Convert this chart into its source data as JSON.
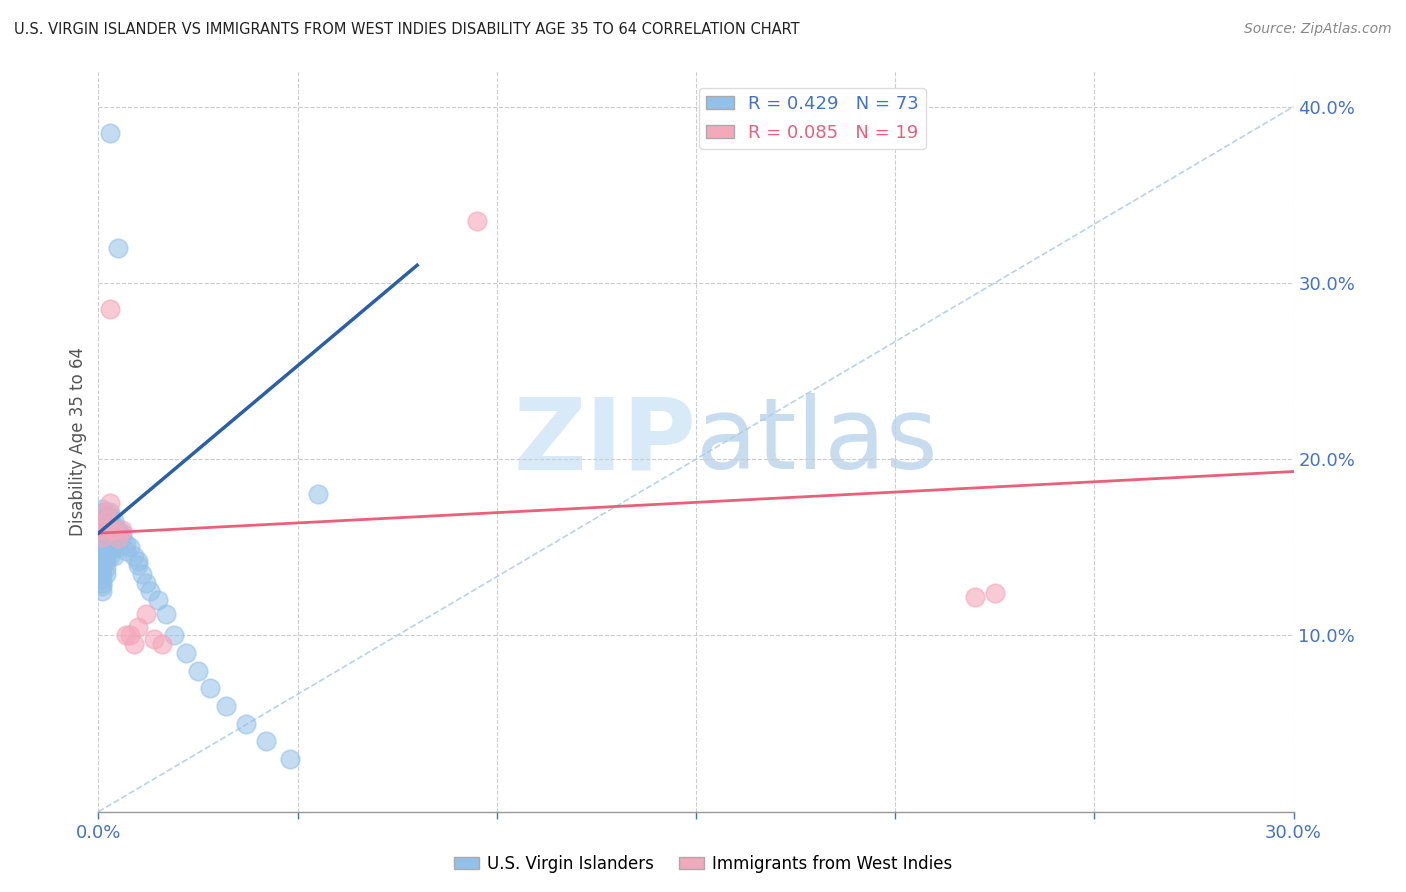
{
  "title": "U.S. VIRGIN ISLANDER VS IMMIGRANTS FROM WEST INDIES DISABILITY AGE 35 TO 64 CORRELATION CHART",
  "source": "Source: ZipAtlas.com",
  "ylabel": "Disability Age 35 to 64",
  "xlim": [
    0.0,
    0.3
  ],
  "ylim": [
    0.0,
    0.42
  ],
  "blue_color": "#92C0E8",
  "pink_color": "#F4A8BB",
  "blue_line_color": "#2B5FA8",
  "pink_line_color": "#E8607A",
  "diag_color": "#AACCE8",
  "watermark_color": "#D8EAF8",
  "blue_R": 0.429,
  "blue_N": 73,
  "pink_R": 0.085,
  "pink_N": 19,
  "blue_scatter": {
    "x": [
      0.001,
      0.001,
      0.001,
      0.001,
      0.001,
      0.001,
      0.001,
      0.001,
      0.001,
      0.001,
      0.001,
      0.001,
      0.001,
      0.001,
      0.001,
      0.001,
      0.001,
      0.001,
      0.001,
      0.001,
      0.002,
      0.002,
      0.002,
      0.002,
      0.002,
      0.002,
      0.002,
      0.002,
      0.002,
      0.002,
      0.002,
      0.002,
      0.003,
      0.003,
      0.003,
      0.003,
      0.003,
      0.003,
      0.003,
      0.003,
      0.004,
      0.004,
      0.004,
      0.004,
      0.004,
      0.005,
      0.005,
      0.005,
      0.005,
      0.006,
      0.006,
      0.007,
      0.007,
      0.008,
      0.009,
      0.01,
      0.01,
      0.011,
      0.012,
      0.013,
      0.015,
      0.017,
      0.019,
      0.022,
      0.025,
      0.028,
      0.032,
      0.037,
      0.042,
      0.048,
      0.003,
      0.005,
      0.055
    ],
    "y": [
      0.155,
      0.158,
      0.16,
      0.162,
      0.164,
      0.166,
      0.168,
      0.17,
      0.172,
      0.152,
      0.148,
      0.145,
      0.143,
      0.14,
      0.138,
      0.135,
      0.132,
      0.13,
      0.128,
      0.125,
      0.16,
      0.162,
      0.165,
      0.168,
      0.17,
      0.155,
      0.15,
      0.148,
      0.145,
      0.142,
      0.138,
      0.135,
      0.163,
      0.165,
      0.168,
      0.17,
      0.155,
      0.152,
      0.148,
      0.145,
      0.162,
      0.165,
      0.155,
      0.15,
      0.145,
      0.16,
      0.158,
      0.155,
      0.15,
      0.158,
      0.155,
      0.152,
      0.148,
      0.15,
      0.145,
      0.14,
      0.142,
      0.135,
      0.13,
      0.125,
      0.12,
      0.112,
      0.1,
      0.09,
      0.08,
      0.07,
      0.06,
      0.05,
      0.04,
      0.03,
      0.385,
      0.32,
      0.18
    ]
  },
  "pink_scatter": {
    "x": [
      0.001,
      0.001,
      0.002,
      0.002,
      0.003,
      0.003,
      0.004,
      0.005,
      0.006,
      0.007,
      0.008,
      0.009,
      0.01,
      0.012,
      0.014,
      0.016,
      0.22,
      0.225,
      0.095
    ],
    "y": [
      0.156,
      0.16,
      0.165,
      0.17,
      0.175,
      0.285,
      0.16,
      0.155,
      0.16,
      0.1,
      0.1,
      0.095,
      0.105,
      0.112,
      0.098,
      0.095,
      0.122,
      0.124,
      0.335
    ]
  },
  "blue_line": {
    "x0": 0.0,
    "x1": 0.08,
    "y0": 0.158,
    "y1": 0.31
  },
  "pink_line": {
    "x0": 0.0,
    "x1": 0.3,
    "y0": 0.158,
    "y1": 0.193
  },
  "diag_line": {
    "x0": 0.0,
    "x1": 0.3,
    "y0": 0.0,
    "y1": 0.4
  }
}
